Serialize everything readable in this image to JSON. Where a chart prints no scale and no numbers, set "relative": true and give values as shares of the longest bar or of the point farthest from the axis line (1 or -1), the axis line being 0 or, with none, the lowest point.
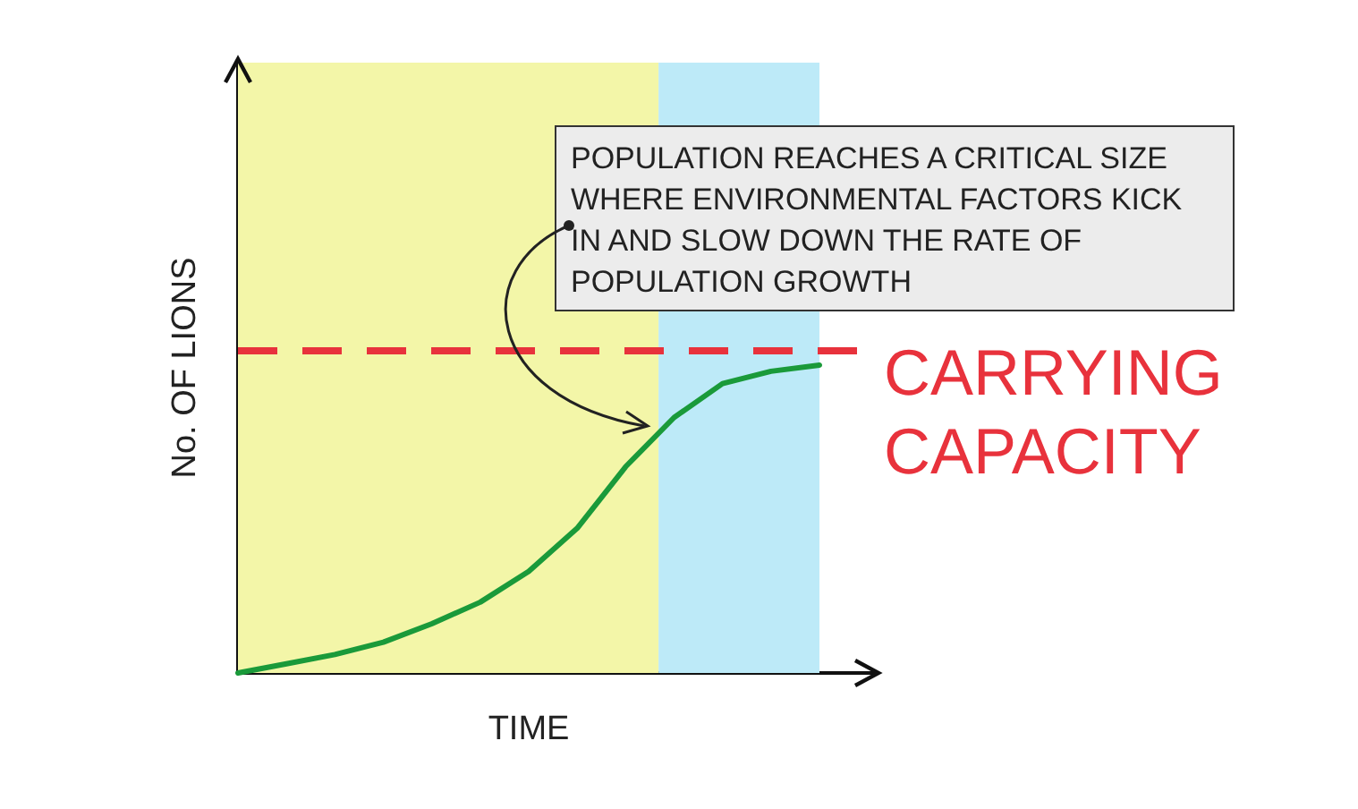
{
  "chart_data": {
    "type": "line",
    "relative": true,
    "xlabel": "TIME",
    "ylabel": "No. OF LIONS",
    "categories": [
      null,
      null,
      null,
      null,
      null,
      null,
      null,
      null,
      null,
      null,
      null,
      null,
      null
    ],
    "series": [
      {
        "color": "#1a9a3a",
        "values": [
          0,
          0.03,
          0.06,
          0.1,
          0.16,
          0.23,
          0.33,
          0.47,
          0.67,
          0.83,
          0.94,
          0.98,
          1
        ]
      }
    ],
    "marker": "none",
    "line_style": "solid",
    "grid": false,
    "ref_lines": [
      {
        "axis": "y",
        "value": 1.05,
        "label": "CARRYING CAPACITY",
        "color": "#e8323c",
        "line_style": "dashed"
      }
    ],
    "annotations": [
      "POPULATION REACHES A CRITICAL SIZE WHERE ENVIRONMENTAL FACTORS KICK IN AND SLOW DOWN THE RATE OF POPULATION GROWTH"
    ]
  }
}
